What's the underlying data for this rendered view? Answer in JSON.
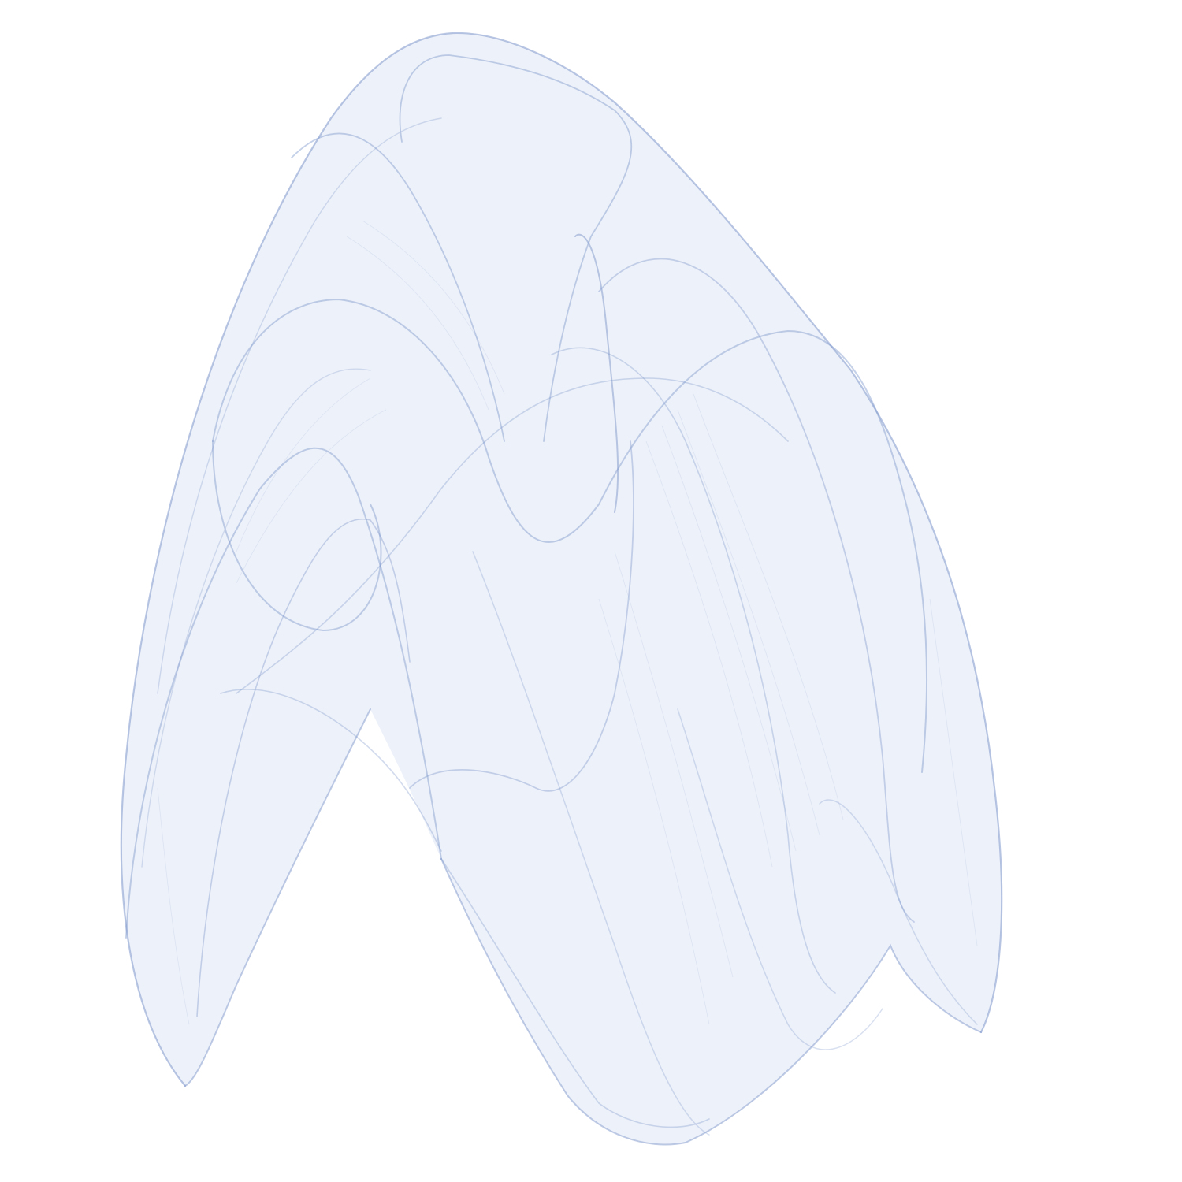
{
  "artwork": {
    "subject": "strange-attractor",
    "background_color": "#ffffff",
    "ink_color": "#7f98cc",
    "fill_color": "#dfe6f4"
  }
}
